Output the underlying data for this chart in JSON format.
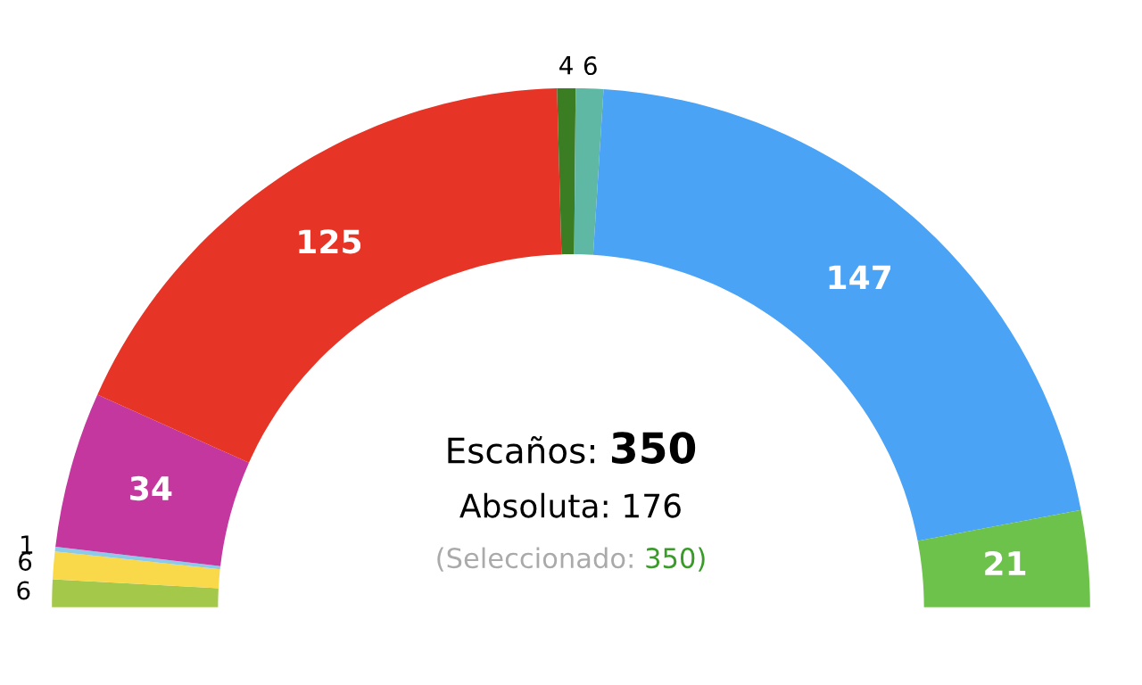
{
  "chart_data": {
    "type": "donut",
    "categories": [
      null,
      null,
      null,
      null,
      null,
      null,
      null,
      null,
      null
    ],
    "values": [
      6,
      6,
      1,
      34,
      125,
      4,
      6,
      147,
      21
    ],
    "colors": [
      "#a4c94a",
      "#f9d84a",
      "#8ec9e8",
      "#c4379f",
      "#e63426",
      "#3b7d23",
      "#5fb8a3",
      "#4aa3f5",
      "#6cc24a"
    ],
    "data_labels": true,
    "annotations": [
      "Escaños: 350",
      "Absoluta: 176",
      "(Seleccionado: 350)"
    ]
  }
}
